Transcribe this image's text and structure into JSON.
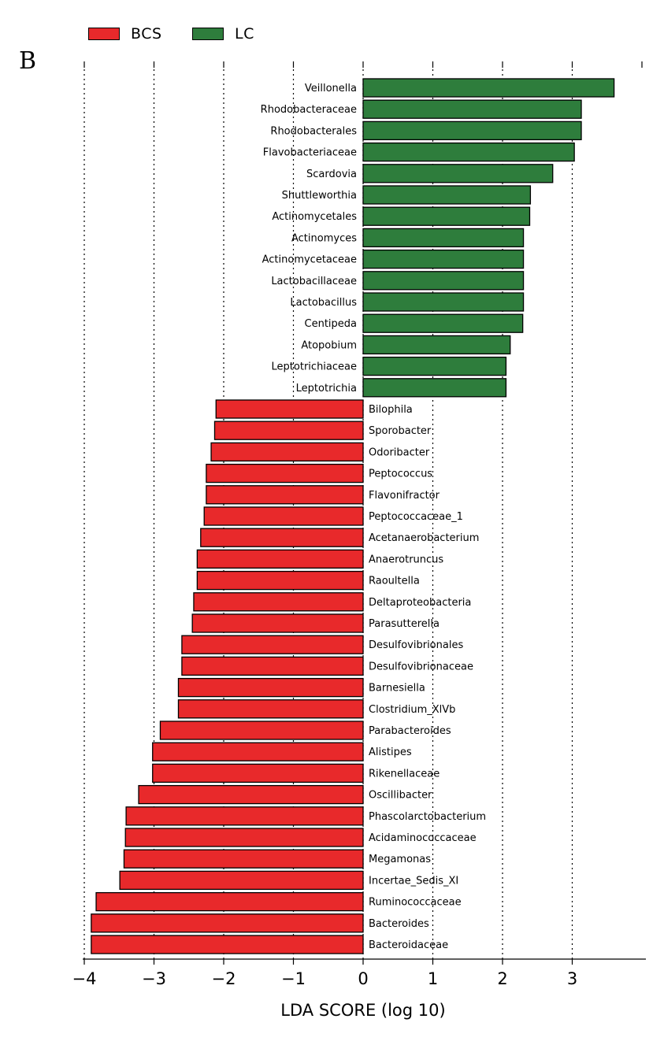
{
  "panel_label": "B",
  "legend": [
    {
      "label": "BCS",
      "color": "#e8292b"
    },
    {
      "label": "LC",
      "color": "#2e7d3c"
    }
  ],
  "chart_data": {
    "type": "bar",
    "orientation": "horizontal",
    "xlabel": "LDA SCORE (log 10)",
    "xlim": [
      -4,
      4
    ],
    "xticks": [
      -4,
      -3,
      -2,
      -1,
      0,
      1,
      2,
      3
    ],
    "grid": "vertical dotted at integer ticks",
    "legend_position": "top-left",
    "series": [
      {
        "name": "LC",
        "color": "#2e7d3c"
      },
      {
        "name": "BCS",
        "color": "#e8292b"
      }
    ],
    "bars": [
      {
        "label": "Veillonella",
        "value": 3.6,
        "group": "LC"
      },
      {
        "label": "Rhodobacteraceae",
        "value": 3.13,
        "group": "LC"
      },
      {
        "label": "Rhodobacterales",
        "value": 3.13,
        "group": "LC"
      },
      {
        "label": "Flavobacteriaceae",
        "value": 3.03,
        "group": "LC"
      },
      {
        "label": "Scardovia",
        "value": 2.72,
        "group": "LC"
      },
      {
        "label": "Shuttleworthia",
        "value": 2.4,
        "group": "LC"
      },
      {
        "label": "Actinomycetales",
        "value": 2.39,
        "group": "LC"
      },
      {
        "label": "Actinomyces",
        "value": 2.3,
        "group": "LC"
      },
      {
        "label": "Actinomycetaceae",
        "value": 2.3,
        "group": "LC"
      },
      {
        "label": "Lactobacillaceae",
        "value": 2.3,
        "group": "LC"
      },
      {
        "label": "Lactobacillus",
        "value": 2.3,
        "group": "LC"
      },
      {
        "label": "Centipeda",
        "value": 2.29,
        "group": "LC"
      },
      {
        "label": "Atopobium",
        "value": 2.11,
        "group": "LC"
      },
      {
        "label": "Leptotrichiaceae",
        "value": 2.05,
        "group": "LC"
      },
      {
        "label": "Leptotrichia",
        "value": 2.05,
        "group": "LC"
      },
      {
        "label": "Bilophila",
        "value": -2.11,
        "group": "BCS"
      },
      {
        "label": "Sporobacter",
        "value": -2.13,
        "group": "BCS"
      },
      {
        "label": "Odoribacter",
        "value": -2.18,
        "group": "BCS"
      },
      {
        "label": "Peptococcus",
        "value": -2.25,
        "group": "BCS"
      },
      {
        "label": "Flavonifractor",
        "value": -2.25,
        "group": "BCS"
      },
      {
        "label": "Peptococcaceae_1",
        "value": -2.28,
        "group": "BCS"
      },
      {
        "label": "Acetanaerobacterium",
        "value": -2.33,
        "group": "BCS"
      },
      {
        "label": "Anaerotruncus",
        "value": -2.38,
        "group": "BCS"
      },
      {
        "label": "Raoultella",
        "value": -2.38,
        "group": "BCS"
      },
      {
        "label": "Deltaproteobacteria",
        "value": -2.43,
        "group": "BCS"
      },
      {
        "label": "Parasutterella",
        "value": -2.45,
        "group": "BCS"
      },
      {
        "label": "Desulfovibrionales",
        "value": -2.6,
        "group": "BCS"
      },
      {
        "label": "Desulfovibrionaceae",
        "value": -2.6,
        "group": "BCS"
      },
      {
        "label": "Barnesiella",
        "value": -2.65,
        "group": "BCS"
      },
      {
        "label": "Clostridium_XlVb",
        "value": -2.65,
        "group": "BCS"
      },
      {
        "label": "Parabacteroides",
        "value": -2.91,
        "group": "BCS"
      },
      {
        "label": "Alistipes",
        "value": -3.02,
        "group": "BCS"
      },
      {
        "label": "Rikenellaceae",
        "value": -3.02,
        "group": "BCS"
      },
      {
        "label": "Oscillibacter",
        "value": -3.22,
        "group": "BCS"
      },
      {
        "label": "Phascolarctobacterium",
        "value": -3.4,
        "group": "BCS"
      },
      {
        "label": "Acidaminococcaceae",
        "value": -3.41,
        "group": "BCS"
      },
      {
        "label": "Megamonas",
        "value": -3.43,
        "group": "BCS"
      },
      {
        "label": "Incertae_Sedis_XI",
        "value": -3.49,
        "group": "BCS"
      },
      {
        "label": "Ruminococcaceae",
        "value": -3.83,
        "group": "BCS"
      },
      {
        "label": "Bacteroides",
        "value": -3.9,
        "group": "BCS"
      },
      {
        "label": "Bacteroidaceae",
        "value": -3.9,
        "group": "BCS"
      }
    ]
  }
}
